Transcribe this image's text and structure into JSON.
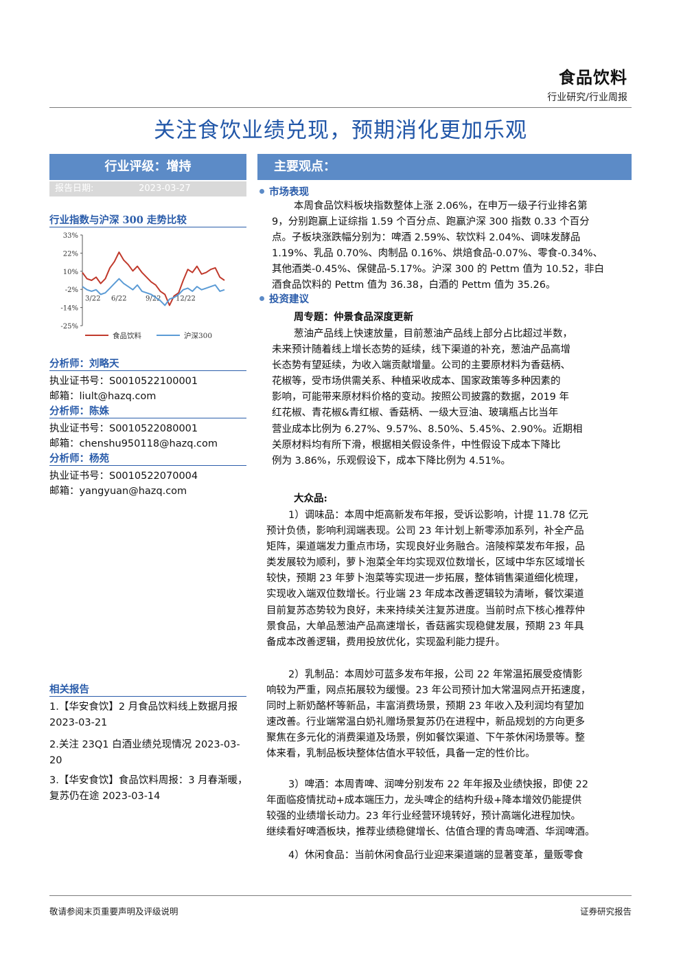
{
  "header": {
    "sector": "食品饮料",
    "category": "行业研究/行业周报"
  },
  "title": "关注食饮业绩兑现，预期消化更加乐观",
  "sidebar": {
    "rating": "行业评级：增持",
    "date_label": "报告日期:",
    "date_value": "2023-03-27",
    "chart_heading": "行业指数与沪深 300 走势比较",
    "analysts": [
      {
        "name": "分析师：刘略天",
        "cert": "执业证书号：S0010522100001",
        "email": "邮箱：liult@hazq.com"
      },
      {
        "name": "分析师：陈姝",
        "cert": "执业证书号：S0010522080001",
        "email": "邮箱：chenshu950118@hazq.com"
      },
      {
        "name": "分析师：杨苑",
        "cert": "执业证书号：S0010522070004",
        "email": "邮箱：yangyuan@hazq.com"
      }
    ],
    "related_heading": "相关报告",
    "related_reports": [
      "1.【华安食饮】2 月食品饮料线上数据月报 2023-03-21",
      "2.关注 23Q1 白酒业绩兑现情况 2023-03-20",
      "3.【华安食饮】食品饮料周报：3 月春渐暖，复苏仍在途 2023-03-14"
    ]
  },
  "chart_data": {
    "type": "line",
    "y_ticks": [
      "33%",
      "22%",
      "10%",
      "-2%",
      "-14%",
      "-25%"
    ],
    "ylim": [
      -25,
      33
    ],
    "x_ticks": [
      "3/22",
      "6/22",
      "9/22",
      "12/22"
    ],
    "grid": false,
    "legend_position": "bottom",
    "series": [
      {
        "name": "食品饮料",
        "color": "#c0392b",
        "values": [
          9,
          5,
          4,
          6,
          2,
          5,
          12,
          16,
          22,
          17,
          14,
          10,
          13,
          9,
          6,
          3,
          1,
          -3,
          -5,
          -12,
          -6,
          -4,
          4,
          11,
          9,
          13,
          8,
          9,
          11,
          12,
          6,
          4
        ]
      },
      {
        "name": "沪深300",
        "color": "#5b9bd5",
        "values": [
          0,
          -2,
          -3,
          -2,
          -5,
          -4,
          -1,
          2,
          5,
          2,
          0,
          -2,
          1,
          -3,
          -4,
          -5,
          -7,
          -9,
          -12,
          -8,
          -7,
          -5,
          -2,
          -1,
          -3,
          0,
          -2,
          -1,
          0,
          1,
          -3,
          -2
        ]
      }
    ]
  },
  "main": {
    "viewpoint_heading": "主要观点：",
    "market_heading": "市场表现",
    "market_lines": [
      "本周食品饮料板块指数整体上涨 2.06%，在申万一级子行业排名第",
      "9，分别跑赢上证综指 1.59 个百分点、跑赢沪深 300 指数 0.33 个百分",
      "点。子板块涨跌幅分别为：啤酒 2.59%、软饮料 2.04%、调味发酵品",
      "1.19%、乳品 0.70%、肉制品 0.16%、烘焙食品-0.07%、零食-0.34%、",
      "其他酒类-0.45%、保健品-5.17%。沪深 300 的 Pettm 值为 10.52，非白",
      "酒食品饮料的 Pettm 值为 36.38，白酒的 Pettm 值为 35.26。"
    ],
    "advice_heading": "投资建议",
    "weekly_topic": "周专题：仲景食品深度更新",
    "topic_lines": [
      "葱油产品线上快速放量，目前葱油产品线上部分占比超过半数，",
      "未来预计随着线上增长态势的延续，线下渠道的补充，葱油产品高增",
      "长态势有望延续，为收入端贡献增量。公司的主要原材料为香菇柄、",
      "花椒等，受市场供需关系、种植采收成本、国家政策等多种因素的",
      "影响，可能带来原材料价格的变动。按照公司披露的数据，2019 年",
      "红花椒、青花椒&青红椒、香菇柄、一级大豆油、玻璃瓶占比当年",
      "营业成本比例为 6.27%、9.57%、8.50%、5.45%、2.90%。近期相",
      "关原材料均有所下滑，根据相关假设条件，中性假设下成本下降比",
      "例为 3.86%，乐观假设下，成本下降比例为 4.51%。"
    ],
    "mass_heading": "大众品:",
    "seasoning_lines": [
      "1）调味品：本周中炬高新发布年报，受诉讼影响，计提 11.78 亿元",
      "预计负债，影响利润端表现。公司 23 年计划上新零添加系列，补全产品",
      "矩阵，渠道端发力重点市场，实现良好业务融合。涪陵榨菜发布年报，品",
      "类发展较为顺利，萝卜泡菜全年均实现双位数增长，区域中华东区域增长",
      "较快，预期 23 年萝卜泡菜等实现进一步拓展，整体销售渠道细化梳理，",
      "实现收入端双位数增长。行业端 23 年成本改善逻辑较为清晰，餐饮渠道",
      "目前复苏态势较为良好，未来持续关注复苏进度。当前时点下核心推荐仲",
      "景食品，大单品葱油产品高速增长，香菇酱实现稳健发展，预期 23 年具",
      "备成本改善逻辑，费用投放优化，实现盈利能力提升。"
    ],
    "dairy_lines": [
      "2）乳制品：本周妙可蓝多发布年报，公司 22 年常温拓展受疫情影",
      "响较为严重，网点拓展较为缓慢。23 年公司预计加大常温网点开拓速度，",
      "同时上新奶酪杯等新品，丰富消费场景，预期 23 年收入及利润均有望加",
      "速改善。行业端常温白奶礼赠场景复苏仍在进程中，新品规划的方向更多",
      "聚焦在多元化的消费渠道及场景，例如餐饮渠道、下午茶休闲场景等。整",
      "体来看，乳制品板块整体估值水平较低，具备一定的性价比。"
    ],
    "beer_lines": [
      "3）啤酒：本周青啤、润啤分别发布 22 年年报及业绩快报，即使 22",
      "年面临疫情扰动+成本端压力，龙头啤企的结构升级+降本增效仍能提供",
      "较强的业绩增长动力。23 年行业经营环境转好，预计高端化进程加快。",
      "继续看好啤酒板块，推荐业绩稳健增长、估值合理的青岛啤酒、华润啤酒。"
    ],
    "snack_lines": [
      "4）休闲食品：当前休闲食品行业迎来渠道端的显著变革，量贩零食"
    ]
  },
  "footer": {
    "left": "敬请参阅末页重要声明及评级说明",
    "right": "证券研究报告"
  }
}
